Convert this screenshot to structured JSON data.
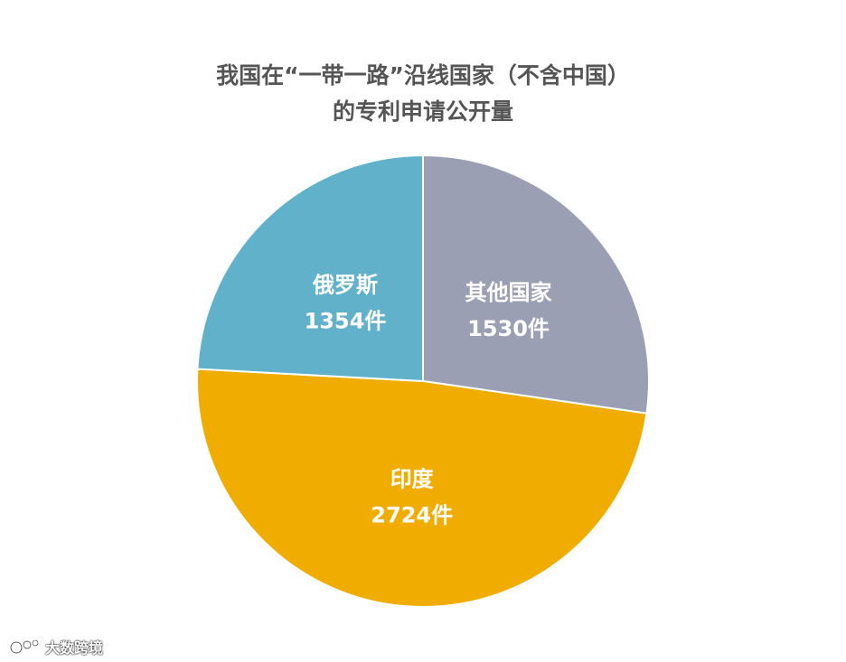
{
  "chart_data": {
    "type": "pie",
    "title_lines": [
      "我国在“一带一路”沿线国家（不含中国）",
      "的专利申请公开量"
    ],
    "slices": [
      {
        "label": "其他国家",
        "value": 1530,
        "value_text": "1530件",
        "color": "#9a9fb3"
      },
      {
        "label": "印度",
        "value": 2724,
        "value_text": "2724件",
        "color": "#f0ad00"
      },
      {
        "label": "俄罗斯",
        "value": 1354,
        "value_text": "1354件",
        "color": "#62b1cb"
      }
    ],
    "start_angle_deg": 0,
    "direction": "clockwise"
  },
  "watermark": {
    "text": "大数跨境"
  }
}
